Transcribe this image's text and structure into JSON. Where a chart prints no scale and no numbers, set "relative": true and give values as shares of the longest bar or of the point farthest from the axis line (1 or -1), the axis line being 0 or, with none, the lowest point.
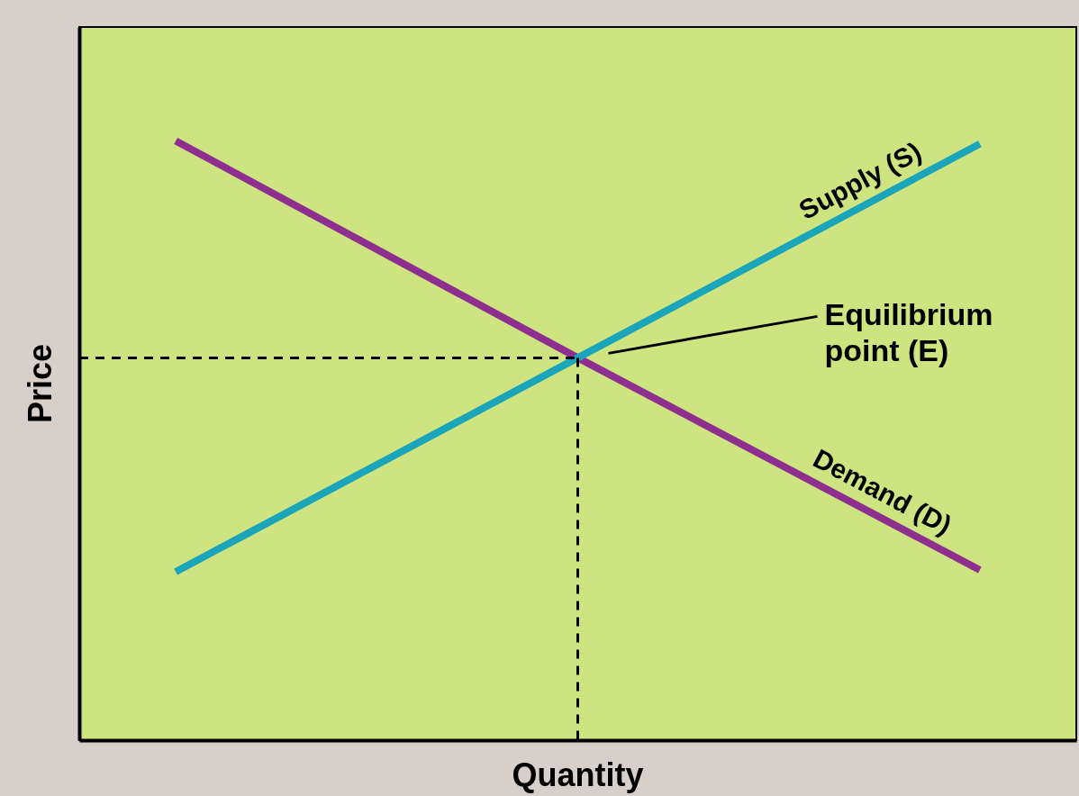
{
  "chart_data": {
    "type": "line",
    "relative": true,
    "xlabel": "Quantity",
    "ylabel": "Price",
    "categories": [
      null,
      null,
      null
    ],
    "series": [
      {
        "name": "Demand (D)",
        "color": "#8e2f8f",
        "values": [
          1,
          0.638,
          0.284
        ]
      },
      {
        "name": "Supply (S)",
        "color": "#1ba5bb",
        "values": [
          0.281,
          0.638,
          0.995
        ]
      }
    ],
    "ref_lines": [
      {
        "axis": "y",
        "value": 0.638,
        "color": "#000000",
        "line_style": "dashed"
      }
    ],
    "annotations": [
      "Equilibrium point (E)"
    ],
    "marker": "none",
    "line_style": "solid"
  }
}
